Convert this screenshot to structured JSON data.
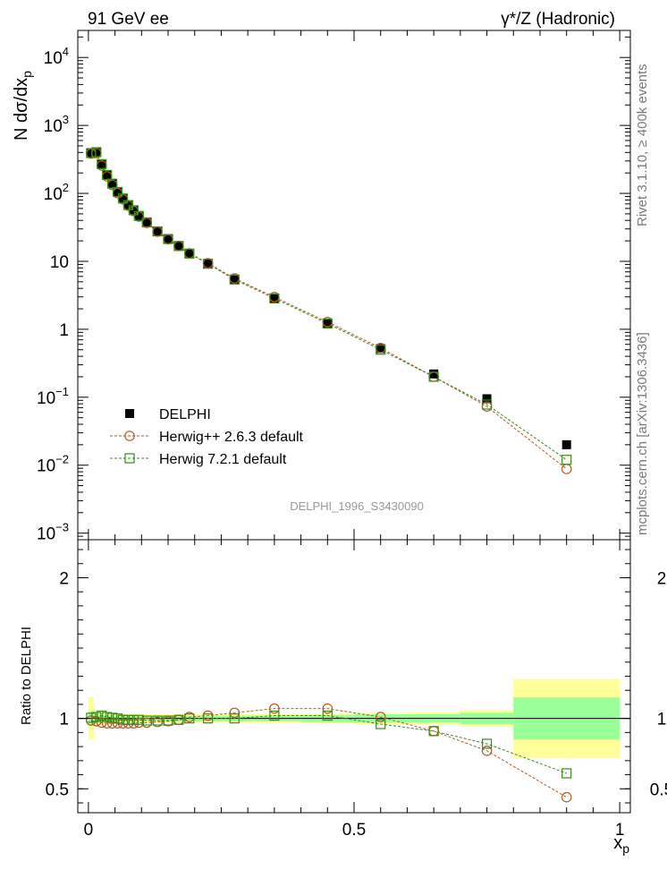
{
  "header": {
    "left": "91 GeV ee",
    "right": "γ*/Z (Hadronic)"
  },
  "side_labels": {
    "rivet": "Rivet 3.1.10, ≥ 400k events",
    "source": "mcplots.cern.ch [arXiv:1306.3436]"
  },
  "colors": {
    "data": "#000000",
    "herwigpp": "#b35a1f",
    "herwig7": "#3a8a1a",
    "band_outer": "#ffff99",
    "band_inner": "#99ff99"
  },
  "chart_data": [
    {
      "id": "main",
      "type": "scatter",
      "title": "",
      "ylabel_main": "N dσ/dx",
      "ylabel_sub": "p",
      "yscale": "log",
      "ylim": [
        0.0008,
        25000
      ],
      "xlim": [
        -0.02,
        1.02
      ],
      "yticks": [
        {
          "v": 0.001,
          "m": "10",
          "e": "−3"
        },
        {
          "v": 0.01,
          "m": "10",
          "e": "−2"
        },
        {
          "v": 0.1,
          "m": "10",
          "e": "−1"
        },
        {
          "v": 1,
          "m": "1",
          "e": ""
        },
        {
          "v": 10,
          "m": "10",
          "e": ""
        },
        {
          "v": 100,
          "m": "10",
          "e": "2"
        },
        {
          "v": 1000,
          "m": "10",
          "e": "3"
        },
        {
          "v": 10000,
          "m": "10",
          "e": "4"
        }
      ],
      "watermark": "DELPHI_1996_S3430090",
      "legend": [
        {
          "key": "data",
          "label": "DELPHI"
        },
        {
          "key": "herwigpp",
          "label": "Herwig++ 2.6.3 default"
        },
        {
          "key": "herwig7",
          "label": "Herwig 7.2.1 default"
        }
      ],
      "series": [
        {
          "name": "DELPHI",
          "x": [
            0.005,
            0.015,
            0.025,
            0.035,
            0.045,
            0.055,
            0.065,
            0.075,
            0.085,
            0.095,
            0.11,
            0.13,
            0.15,
            0.17,
            0.19,
            0.225,
            0.275,
            0.35,
            0.45,
            0.55,
            0.65,
            0.75,
            0.9
          ],
          "y": [
            390,
            400,
            265,
            185,
            138,
            105,
            85,
            68,
            57,
            47,
            38,
            28,
            21.5,
            17,
            13,
            9.2,
            5.4,
            2.8,
            1.2,
            0.52,
            0.22,
            0.095,
            0.02
          ]
        },
        {
          "name": "Herwig++ 2.6.3 default",
          "x": [
            0.005,
            0.015,
            0.025,
            0.035,
            0.045,
            0.055,
            0.065,
            0.075,
            0.085,
            0.095,
            0.11,
            0.13,
            0.15,
            0.17,
            0.19,
            0.225,
            0.275,
            0.35,
            0.45,
            0.55,
            0.65,
            0.75,
            0.9
          ],
          "y": [
            385,
            392,
            257,
            178,
            133,
            101,
            82,
            66,
            55,
            45.5,
            36.8,
            27.3,
            21.1,
            16.8,
            13.1,
            9.4,
            5.6,
            2.98,
            1.28,
            0.53,
            0.2,
            0.073,
            0.0088
          ]
        },
        {
          "name": "Herwig 7.2.1 default",
          "x": [
            0.005,
            0.015,
            0.025,
            0.035,
            0.045,
            0.055,
            0.065,
            0.075,
            0.085,
            0.095,
            0.11,
            0.13,
            0.15,
            0.17,
            0.19,
            0.225,
            0.275,
            0.35,
            0.45,
            0.55,
            0.65,
            0.75,
            0.9
          ],
          "y": [
            392,
            404,
            270,
            187,
            139,
            105,
            84,
            67.3,
            56.4,
            46.5,
            37.4,
            27.6,
            21.3,
            16.8,
            13,
            9.2,
            5.4,
            2.85,
            1.22,
            0.5,
            0.2,
            0.078,
            0.012
          ]
        }
      ]
    },
    {
      "id": "ratio",
      "type": "line",
      "ylabel": "Ratio to DELPHI",
      "xlabel_main": "x",
      "xlabel_sub": "p",
      "xlim": [
        -0.02,
        1.02
      ],
      "ylim": [
        0.33,
        2.27
      ],
      "yticks": [
        0.5,
        1,
        2
      ],
      "ytick_labels": [
        "0.5",
        "1",
        "2"
      ],
      "xticks": [
        0,
        0.5,
        1
      ],
      "xtick_labels": [
        "0",
        "0.5",
        "1"
      ],
      "bands": {
        "edges": [
          0.0,
          0.01,
          0.02,
          0.03,
          0.04,
          0.05,
          0.06,
          0.07,
          0.08,
          0.09,
          0.1,
          0.12,
          0.14,
          0.16,
          0.18,
          0.2,
          0.25,
          0.3,
          0.4,
          0.5,
          0.6,
          0.7,
          0.8,
          1.0
        ],
        "outer": [
          0.15,
          0.06,
          0.04,
          0.035,
          0.03,
          0.03,
          0.03,
          0.03,
          0.03,
          0.03,
          0.03,
          0.03,
          0.03,
          0.03,
          0.03,
          0.03,
          0.03,
          0.03,
          0.035,
          0.04,
          0.045,
          0.06,
          0.28
        ],
        "inner": [
          0.05,
          0.03,
          0.02,
          0.02,
          0.02,
          0.02,
          0.02,
          0.02,
          0.02,
          0.02,
          0.02,
          0.02,
          0.02,
          0.02,
          0.02,
          0.02,
          0.02,
          0.02,
          0.025,
          0.03,
          0.03,
          0.04,
          0.15
        ]
      },
      "series": [
        {
          "name": "Herwig++ 2.6.3 default",
          "x": [
            0.005,
            0.015,
            0.025,
            0.035,
            0.045,
            0.055,
            0.065,
            0.075,
            0.085,
            0.095,
            0.11,
            0.13,
            0.15,
            0.17,
            0.19,
            0.225,
            0.275,
            0.35,
            0.45,
            0.55,
            0.65,
            0.75,
            0.9
          ],
          "y": [
            0.985,
            0.98,
            0.97,
            0.965,
            0.965,
            0.965,
            0.965,
            0.965,
            0.965,
            0.97,
            0.97,
            0.975,
            0.98,
            0.99,
            1.01,
            1.02,
            1.04,
            1.07,
            1.07,
            1.01,
            0.91,
            0.77,
            0.44
          ]
        },
        {
          "name": "Herwig 7.2.1 default",
          "x": [
            0.005,
            0.015,
            0.025,
            0.035,
            0.045,
            0.055,
            0.065,
            0.075,
            0.085,
            0.095,
            0.11,
            0.13,
            0.15,
            0.17,
            0.19,
            0.225,
            0.275,
            0.35,
            0.45,
            0.55,
            0.65,
            0.75,
            0.9
          ],
          "y": [
            1.005,
            1.01,
            1.02,
            1.01,
            1.005,
            1.0,
            0.99,
            0.99,
            0.99,
            0.99,
            0.985,
            0.985,
            0.985,
            0.99,
            1.0,
            1.0,
            1.0,
            1.02,
            1.02,
            0.96,
            0.91,
            0.82,
            0.61
          ]
        }
      ]
    }
  ]
}
